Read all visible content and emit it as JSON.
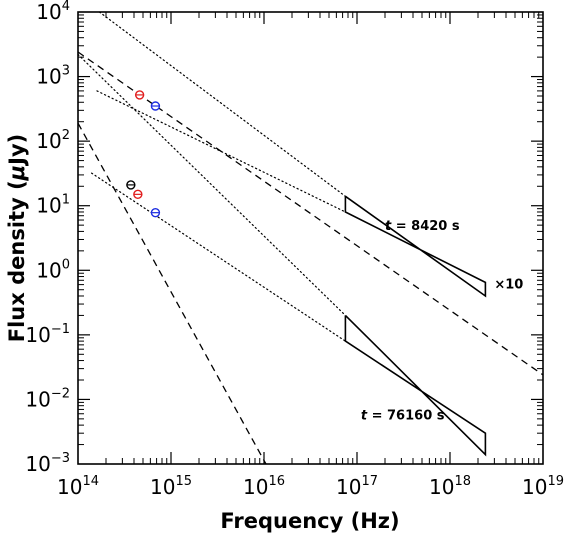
{
  "chart_data": {
    "type": "scatter",
    "xscale": "log",
    "yscale": "log",
    "xlim": [
      100000000000000.0,
      1e+19
    ],
    "ylim": [
      0.001,
      10000
    ],
    "xlabel": "Frequency (Hz)",
    "ylabel_prefix": "Flux density (",
    "ylabel_mu": "μ",
    "ylabel_suffix": "Jy)",
    "xtick_exponents": [
      14,
      15,
      16,
      17,
      18,
      19
    ],
    "ytick_labels": [
      {
        "value": 0.001,
        "base": "10",
        "exp": "−3"
      },
      {
        "value": 0.01,
        "base": "10",
        "exp": "−2"
      },
      {
        "value": 0.1,
        "base": "10",
        "exp": "−1"
      },
      {
        "value": 1,
        "base": "10",
        "exp": "0"
      },
      {
        "value": 10,
        "base": "10",
        "exp": "1"
      },
      {
        "value": 100,
        "base": "10",
        "exp": "2"
      },
      {
        "value": 1000,
        "base": "10",
        "exp": "3"
      },
      {
        "value": 10000,
        "base": "10",
        "exp": "4"
      }
    ],
    "annotations": [
      {
        "t_italic": "t",
        "rest": " = 8420 s",
        "x": 2e+17,
        "y": 4.2
      },
      {
        "t_italic": "t",
        "rest": " = 76160 s",
        "x": 1.1e+17,
        "y": 0.0049
      },
      {
        "text": "×10",
        "x": 3e+18,
        "y": 0.52
      }
    ],
    "series": [
      {
        "color": "#e11d1d",
        "points": [
          {
            "x": 460000000000000.0,
            "y": 520
          },
          {
            "x": 440000000000000.0,
            "y": 15
          }
        ]
      },
      {
        "color": "#1d2ee1",
        "points": [
          {
            "x": 680000000000000.0,
            "y": 350
          },
          {
            "x": 680000000000000.0,
            "y": 7.8
          }
        ]
      },
      {
        "color": "#000000",
        "points": [
          {
            "x": 370000000000000.0,
            "y": 21
          }
        ]
      }
    ],
    "dashed_lines": [
      {
        "p1": [
          100000000000000.0,
          2400
        ],
        "p2": [
          1e+19,
          0.024
        ]
      },
      {
        "p1": [
          100000000000000.0,
          190
        ],
        "p2": [
          1.05e+16,
          0.001
        ]
      }
    ],
    "dotted_lines": [
      {
        "p1": [
          170000000000000.0,
          10000
        ],
        "p2": [
          7.5e+16,
          14
        ]
      },
      {
        "p1": [
          160000000000000.0,
          600
        ],
        "p2": [
          7.5e+16,
          8
        ]
      },
      {
        "p1": [
          100000000000000.0,
          2200
        ],
        "p2": [
          7.5e+16,
          0.2
        ]
      },
      {
        "p1": [
          140000000000000.0,
          32
        ],
        "p2": [
          7.5e+16,
          0.08
        ]
      }
    ],
    "bowties": [
      [
        [
          7.5e+16,
          14
        ],
        [
          2.4e+18,
          0.4
        ],
        [
          2.4e+18,
          0.65
        ],
        [
          7.5e+16,
          8
        ],
        [
          7.5e+16,
          14
        ]
      ],
      [
        [
          7.5e+16,
          0.2
        ],
        [
          2.4e+18,
          0.0014
        ],
        [
          2.4e+18,
          0.003
        ],
        [
          7.5e+16,
          0.08
        ],
        [
          7.5e+16,
          0.2
        ]
      ]
    ]
  }
}
